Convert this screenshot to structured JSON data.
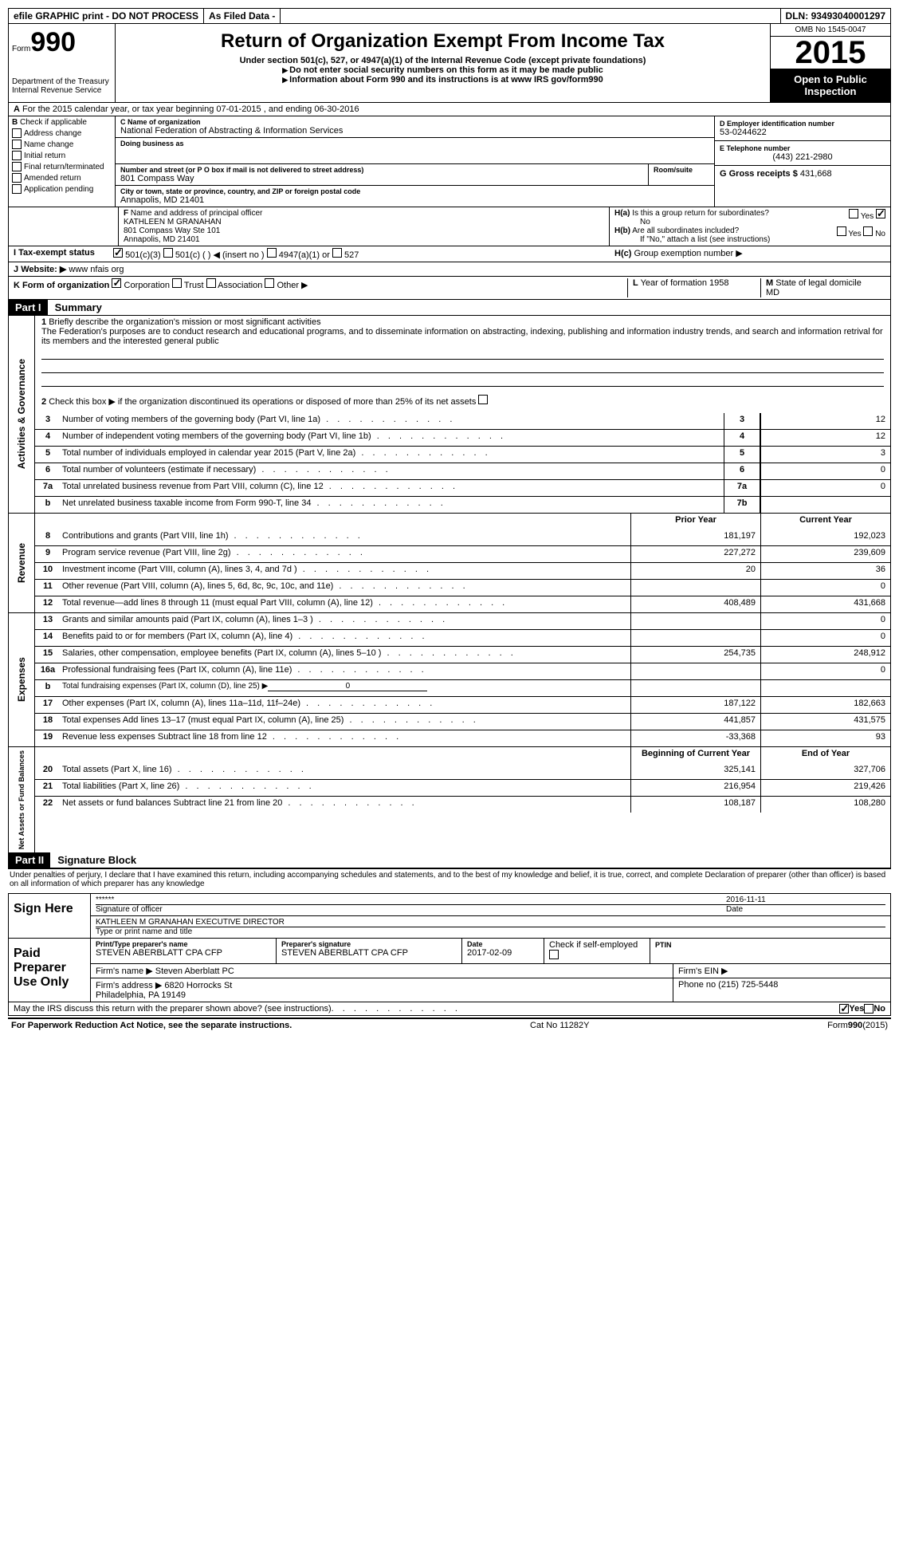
{
  "topbar": {
    "efile": "efile GRAPHIC print - DO NOT PROCESS",
    "asfiled": "As Filed Data -",
    "dln_label": "DLN:",
    "dln": "93493040001297"
  },
  "header": {
    "form": "Form",
    "num": "990",
    "dept1": "Department of the Treasury",
    "dept2": "Internal Revenue Service",
    "title": "Return of Organization Exempt From Income Tax",
    "sub": "Under section 501(c), 527, or 4947(a)(1) of the Internal Revenue Code (except private foundations)",
    "note1": "Do not enter social security numbers on this form as it may be made public",
    "note2": "Information about Form 990 and its instructions is at www IRS gov/form990",
    "omb": "OMB No 1545-0047",
    "year": "2015",
    "open": "Open to Public Inspection"
  },
  "sectionA": {
    "line": "For the 2015 calendar year, or tax year beginning 07-01-2015   , and ending 06-30-2016"
  },
  "sectionB": {
    "label": "Check if applicable",
    "items": [
      "Address change",
      "Name change",
      "Initial return",
      "Final return/terminated",
      "Amended return",
      "Application pending"
    ]
  },
  "sectionC": {
    "label": "Name of organization",
    "name": "National Federation of Abstracting & Information Services",
    "dba_label": "Doing business as",
    "dba": "",
    "addr_label": "Number and street (or P O  box if mail is not delivered to street address)",
    "room_label": "Room/suite",
    "addr": "801 Compass Way",
    "city_label": "City or town, state or province, country, and ZIP or foreign postal code",
    "city": "Annapolis, MD  21401"
  },
  "sectionD": {
    "label": "D Employer identification number",
    "val": "53-0244622"
  },
  "sectionE": {
    "label": "E Telephone number",
    "val": "(443) 221-2980"
  },
  "sectionG": {
    "label": "G Gross receipts $",
    "val": "431,668"
  },
  "sectionF": {
    "label": "Name and address of principal officer",
    "name": "KATHLEEN M GRANAHAN",
    "addr": "801 Compass Way Ste 101",
    "city": "Annapolis, MD  21401"
  },
  "sectionH": {
    "a": "Is this a group return for subordinates?",
    "a_ans": "No",
    "b": "Are all subordinates included?",
    "b_note": "If \"No,\" attach a list  (see instructions)",
    "c": "Group exemption number ▶",
    "yes": "Yes",
    "no": "No"
  },
  "sectionI": {
    "label": "Tax-exempt status",
    "c501c3": "501(c)(3)",
    "c501c": "501(c) (  ) ◀ (insert no )",
    "c4947": "4947(a)(1) or",
    "c527": "527"
  },
  "sectionJ": {
    "label": "Website: ▶",
    "val": "www nfais org"
  },
  "sectionK": {
    "label": "Form of organization",
    "corp": "Corporation",
    "trust": "Trust",
    "assoc": "Association",
    "other": "Other ▶"
  },
  "sectionL": {
    "label": "Year of formation",
    "val": "1958"
  },
  "sectionM": {
    "label": "State of legal domicile",
    "val": "MD"
  },
  "part1": {
    "hdr": "Part I",
    "title": "Summary",
    "l1": "Briefly describe the organization's mission or most significant activities",
    "mission": "The Federation's purposes are to conduct research and educational programs, and to disseminate information on abstracting, indexing, publishing and information industry trends, and search and information retrival for its members and the interested general public",
    "l2": "Check this box ▶   if the organization discontinued its operations or disposed of more than 25% of its net assets",
    "lines": [
      {
        "n": "3",
        "d": "Number of voting members of the governing body (Part VI, line 1a)",
        "m": "3",
        "v": "12"
      },
      {
        "n": "4",
        "d": "Number of independent voting members of the governing body (Part VI, line 1b)",
        "m": "4",
        "v": "12"
      },
      {
        "n": "5",
        "d": "Total number of individuals employed in calendar year 2015 (Part V, line 2a)",
        "m": "5",
        "v": "3"
      },
      {
        "n": "6",
        "d": "Total number of volunteers (estimate if necessary)",
        "m": "6",
        "v": "0"
      },
      {
        "n": "7a",
        "d": "Total unrelated business revenue from Part VIII, column (C), line 12",
        "m": "7a",
        "v": "0"
      },
      {
        "n": "b",
        "d": "Net unrelated business taxable income from Form 990-T, line 34",
        "m": "7b",
        "v": ""
      }
    ],
    "side_gov": "Activities & Governance",
    "side_rev": "Revenue",
    "side_exp": "Expenses",
    "side_net": "Net Assets or Fund Balances",
    "prior_hdr": "Prior Year",
    "curr_hdr": "Current Year",
    "revenue": [
      {
        "n": "8",
        "d": "Contributions and grants (Part VIII, line 1h)",
        "p": "181,197",
        "c": "192,023"
      },
      {
        "n": "9",
        "d": "Program service revenue (Part VIII, line 2g)",
        "p": "227,272",
        "c": "239,609"
      },
      {
        "n": "10",
        "d": "Investment income (Part VIII, column (A), lines 3, 4, and 7d )",
        "p": "20",
        "c": "36"
      },
      {
        "n": "11",
        "d": "Other revenue (Part VIII, column (A), lines 5, 6d, 8c, 9c, 10c, and 11e)",
        "p": "",
        "c": "0"
      },
      {
        "n": "12",
        "d": "Total revenue—add lines 8 through 11 (must equal Part VIII, column (A), line 12)",
        "p": "408,489",
        "c": "431,668"
      }
    ],
    "expenses": [
      {
        "n": "13",
        "d": "Grants and similar amounts paid (Part IX, column (A), lines 1–3 )",
        "p": "",
        "c": "0"
      },
      {
        "n": "14",
        "d": "Benefits paid to or for members (Part IX, column (A), line 4)",
        "p": "",
        "c": "0"
      },
      {
        "n": "15",
        "d": "Salaries, other compensation, employee benefits (Part IX, column (A), lines 5–10 )",
        "p": "254,735",
        "c": "248,912"
      },
      {
        "n": "16a",
        "d": "Professional fundraising fees (Part IX, column (A), line 11e)",
        "p": "",
        "c": "0"
      },
      {
        "n": "b",
        "d": "Total fundraising expenses (Part IX, column (D), line 25) ▶",
        "p": "",
        "c": "",
        "noval": true,
        "under": "0"
      },
      {
        "n": "17",
        "d": "Other expenses (Part IX, column (A), lines 11a–11d, 11f–24e)",
        "p": "187,122",
        "c": "182,663"
      },
      {
        "n": "18",
        "d": "Total expenses  Add lines 13–17 (must equal Part IX, column (A), line 25)",
        "p": "441,857",
        "c": "431,575"
      },
      {
        "n": "19",
        "d": "Revenue less expenses  Subtract line 18 from line 12",
        "p": "-33,368",
        "c": "93"
      }
    ],
    "beg_hdr": "Beginning of Current Year",
    "end_hdr": "End of Year",
    "net": [
      {
        "n": "20",
        "d": "Total assets (Part X, line 16)",
        "p": "325,141",
        "c": "327,706"
      },
      {
        "n": "21",
        "d": "Total liabilities (Part X, line 26)",
        "p": "216,954",
        "c": "219,426"
      },
      {
        "n": "22",
        "d": "Net assets or fund balances  Subtract line 21 from line 20",
        "p": "108,187",
        "c": "108,280"
      }
    ]
  },
  "part2": {
    "hdr": "Part II",
    "title": "Signature Block",
    "decl": "Under penalties of perjury, I declare that I have examined this return, including accompanying schedules and statements, and to the best of my knowledge and belief, it is true, correct, and complete  Declaration of preparer (other than officer) is based on all information of which preparer has any knowledge",
    "sign_here": "Sign Here",
    "sig_label": "Signature of officer",
    "sig_val": "******",
    "date_label": "Date",
    "date": "2016-11-11",
    "name_label": "Type or print name and title",
    "name": "KATHLEEN M GRANAHAN  EXECUTIVE DIRECTOR",
    "paid": "Paid Preparer Use Only",
    "prep_name_l": "Print/Type preparer's name",
    "prep_name": "STEVEN ABERBLATT CPA CFP",
    "prep_sig_l": "Preparer's signature",
    "prep_sig": "STEVEN ABERBLATT CPA CFP",
    "prep_date_l": "Date",
    "prep_date": "2017-02-09",
    "check_l": "Check      if self-employed",
    "ptin_l": "PTIN",
    "firm_name_l": "Firm's name   ▶",
    "firm_name": "Steven Aberblatt PC",
    "firm_ein_l": "Firm's EIN ▶",
    "firm_addr_l": "Firm's address ▶",
    "firm_addr": "6820 Horrocks St",
    "firm_city": "Philadelphia, PA  19149",
    "phone_l": "Phone no",
    "phone": "(215) 725-5448",
    "irs_discuss": "May the IRS discuss this return with the preparer shown above? (see instructions)",
    "irs_yes": "Yes",
    "irs_no": "No"
  },
  "footer": {
    "l": "For Paperwork Reduction Act Notice, see the separate instructions.",
    "m": "Cat No  11282Y",
    "r": "Form 990 (2015)"
  }
}
